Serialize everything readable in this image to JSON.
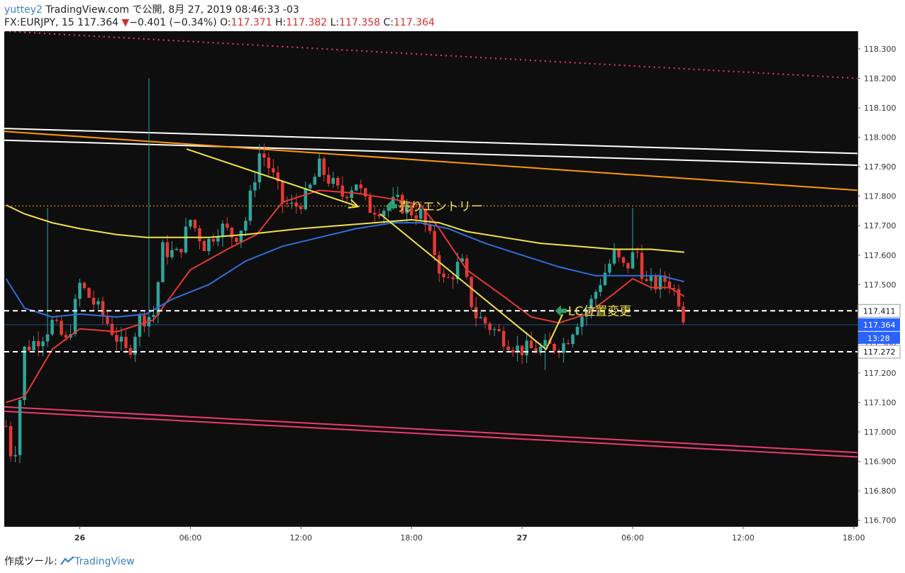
{
  "header": {
    "user": "yuttey2",
    "published": "TradingView.com で公開, 8月 27, 2019 08:46:33 -03",
    "symbol": "FX:EURJPY, 15",
    "last": "117.364",
    "change_arrow": "▼",
    "change": "−0.401 (−0.34%)",
    "o_label": "O:",
    "o": "117.371",
    "h_label": "H:",
    "h": "117.382",
    "l_label": "L:",
    "l": "117.358",
    "c_label": "C:",
    "c": "117.364"
  },
  "footer": {
    "label": "作成ツール:",
    "brand": "TradingView",
    "logo_icon": "tradingview-logo-icon"
  },
  "colors": {
    "background": "#0e0e0e",
    "up": "#2ea59a",
    "down": "#e53935",
    "ema_red": "#e53935",
    "ema_blue": "#2f6fdb",
    "ema_yellow": "#f2e24a",
    "trend_orange": "#ff9800",
    "trend_white": "#ffffff",
    "trend_pink": "#ec3b6e",
    "annotation_yellow": "#f2e24a",
    "annotation_green": "#2e9e6a"
  },
  "chart_data": {
    "type": "candlestick",
    "symbol": "FX:EURJPY",
    "timeframe": "15",
    "ylim": [
      116.68,
      118.36
    ],
    "y_ticks": [
      "116.700",
      "116.800",
      "116.900",
      "117.000",
      "117.100",
      "117.200",
      "117.300",
      "117.400",
      "117.500",
      "117.600",
      "117.700",
      "117.800",
      "117.900",
      "118.000",
      "118.100",
      "118.200",
      "118.300"
    ],
    "x_ticks": [
      {
        "label": "26",
        "bold": true,
        "hour": 6
      },
      {
        "label": "06:00",
        "bold": false,
        "hour": 12
      },
      {
        "label": "12:00",
        "bold": false,
        "hour": 18
      },
      {
        "label": "18:00",
        "bold": false,
        "hour": 24
      },
      {
        "label": "27",
        "bold": true,
        "hour": 30
      },
      {
        "label": "06:00",
        "bold": false,
        "hour": 36
      },
      {
        "label": "12:00",
        "bold": false,
        "hour": 42
      },
      {
        "label": "18:00",
        "bold": false,
        "hour": 48
      }
    ],
    "x_range_hours": [
      1.9,
      48.2
    ],
    "key_points": [
      [
        2.0,
        117.02
      ],
      [
        2.4,
        116.88
      ],
      [
        3.0,
        117.28
      ],
      [
        4.0,
        117.33
      ],
      [
        4.5,
        117.37
      ],
      [
        5.3,
        117.3
      ],
      [
        6.0,
        117.5
      ],
      [
        7.2,
        117.4
      ],
      [
        8.0,
        117.32
      ],
      [
        8.6,
        117.26
      ],
      [
        9.2,
        117.38
      ],
      [
        10.0,
        117.4
      ],
      [
        10.5,
        117.62
      ],
      [
        11.3,
        117.6
      ],
      [
        12.0,
        117.72
      ],
      [
        12.8,
        117.63
      ],
      [
        13.6,
        117.7
      ],
      [
        14.4,
        117.66
      ],
      [
        15.0,
        117.72
      ],
      [
        15.8,
        117.96
      ],
      [
        16.4,
        117.88
      ],
      [
        17.0,
        117.78
      ],
      [
        17.6,
        117.76
      ],
      [
        18.3,
        117.8
      ],
      [
        19.0,
        117.9
      ],
      [
        19.6,
        117.85
      ],
      [
        20.2,
        117.8
      ],
      [
        21.0,
        117.85
      ],
      [
        21.6,
        117.76
      ],
      [
        22.5,
        117.76
      ],
      [
        23.2,
        117.78
      ],
      [
        23.9,
        117.75
      ],
      [
        24.5,
        117.74
      ],
      [
        25.2,
        117.62
      ],
      [
        25.8,
        117.5
      ],
      [
        26.7,
        117.58
      ],
      [
        27.4,
        117.4
      ],
      [
        28.2,
        117.36
      ],
      [
        29.0,
        117.32
      ],
      [
        29.8,
        117.28
      ],
      [
        30.8,
        117.28
      ],
      [
        31.7,
        117.29
      ],
      [
        32.3,
        117.3
      ],
      [
        33.0,
        117.38
      ],
      [
        33.6,
        117.42
      ],
      [
        34.3,
        117.52
      ],
      [
        35.0,
        117.6
      ],
      [
        35.6,
        117.55
      ],
      [
        36.2,
        117.62
      ],
      [
        36.7,
        117.5
      ],
      [
        37.3,
        117.5
      ],
      [
        37.9,
        117.52
      ],
      [
        38.5,
        117.45
      ],
      [
        38.9,
        117.364
      ]
    ],
    "spike_highs": [
      [
        4.2,
        117.76
      ],
      [
        9.7,
        118.2
      ],
      [
        35.9,
        117.76
      ],
      [
        31.3,
        117.21
      ]
    ],
    "series": [
      {
        "kind": "ema",
        "points": [
          [
            2.0,
            117.1
          ],
          [
            3.0,
            117.12
          ],
          [
            4.5,
            117.28
          ],
          [
            6.0,
            117.35
          ],
          [
            8.0,
            117.34
          ],
          [
            10.0,
            117.38
          ],
          [
            12.0,
            117.55
          ],
          [
            14.0,
            117.62
          ],
          [
            15.6,
            117.67
          ],
          [
            17.0,
            117.78
          ],
          [
            19.0,
            117.82
          ],
          [
            21.0,
            117.81
          ],
          [
            23.0,
            117.79
          ],
          [
            24.5,
            117.77
          ],
          [
            25.5,
            117.69
          ],
          [
            27.0,
            117.55
          ],
          [
            29.0,
            117.46
          ],
          [
            30.5,
            117.39
          ],
          [
            32.0,
            117.37
          ],
          [
            33.5,
            117.4
          ],
          [
            35.0,
            117.47
          ],
          [
            36.0,
            117.52
          ],
          [
            37.0,
            117.49
          ],
          [
            38.0,
            117.49
          ],
          [
            38.8,
            117.46
          ]
        ]
      },
      {
        "kind": "ema",
        "points": [
          [
            2.0,
            117.52
          ],
          [
            3.0,
            117.42
          ],
          [
            4.5,
            117.39
          ],
          [
            6.0,
            117.4
          ],
          [
            8.0,
            117.39
          ],
          [
            9.6,
            117.4
          ],
          [
            11.0,
            117.45
          ],
          [
            13.0,
            117.5
          ],
          [
            15.0,
            117.58
          ],
          [
            17.0,
            117.63
          ],
          [
            19.0,
            117.66
          ],
          [
            21.0,
            117.69
          ],
          [
            23.0,
            117.71
          ],
          [
            24.5,
            117.71
          ],
          [
            26.0,
            117.69
          ],
          [
            28.0,
            117.64
          ],
          [
            30.0,
            117.6
          ],
          [
            32.0,
            117.56
          ],
          [
            34.0,
            117.53
          ],
          [
            36.0,
            117.53
          ],
          [
            37.5,
            117.53
          ],
          [
            38.8,
            117.51
          ]
        ]
      },
      {
        "kind": "ema",
        "points": [
          [
            2.0,
            117.77
          ],
          [
            3.0,
            117.74
          ],
          [
            4.5,
            117.71
          ],
          [
            6.0,
            117.69
          ],
          [
            8.0,
            117.67
          ],
          [
            9.6,
            117.66
          ],
          [
            11.0,
            117.66
          ],
          [
            13.0,
            117.66
          ],
          [
            15.0,
            117.67
          ],
          [
            16.5,
            117.68
          ],
          [
            18.0,
            117.69
          ],
          [
            20.0,
            117.7
          ],
          [
            22.0,
            117.71
          ],
          [
            24.0,
            117.72
          ],
          [
            25.5,
            117.71
          ],
          [
            27.0,
            117.68
          ],
          [
            29.0,
            117.66
          ],
          [
            31.0,
            117.64
          ],
          [
            33.0,
            117.63
          ],
          [
            35.0,
            117.62
          ],
          [
            37.0,
            117.62
          ],
          [
            38.8,
            117.61
          ]
        ]
      }
    ],
    "trendlines": [
      {
        "color_key": "trend_white",
        "style": "solid",
        "from": [
          1.9,
          118.03
        ],
        "to": [
          48.2,
          117.945
        ]
      },
      {
        "color_key": "trend_white",
        "style": "solid",
        "from": [
          1.9,
          117.99
        ],
        "to": [
          48.2,
          117.905
        ]
      },
      {
        "color_key": "trend_orange",
        "style": "solid",
        "from": [
          1.9,
          118.02
        ],
        "to": [
          48.2,
          117.82
        ]
      },
      {
        "color_key": "trend_pink",
        "style": "dotted",
        "from": [
          1.9,
          118.36
        ],
        "to": [
          48.2,
          118.2
        ]
      },
      {
        "color_key": "trend_pink",
        "style": "solid",
        "from": [
          1.9,
          117.085
        ],
        "to": [
          48.2,
          116.93
        ]
      },
      {
        "color_key": "trend_pink",
        "style": "solid",
        "from": [
          1.9,
          117.07
        ],
        "to": [
          48.2,
          116.915
        ]
      }
    ],
    "horizontal_levels": [
      {
        "price": 117.411,
        "label": "117.411",
        "style": "dashed",
        "color": "#ffffff",
        "label_bg": "#ffffff",
        "label_fg": "#111111"
      },
      {
        "price": 117.272,
        "label": "117.272",
        "style": "dashed",
        "color": "#ffffff",
        "label_bg": "#ffffff",
        "label_fg": "#111111"
      },
      {
        "price": 117.767,
        "label": "",
        "style": "dotted",
        "color": "#ff9800"
      },
      {
        "price": 117.364,
        "label": "117.364",
        "style": "thin",
        "color": "#3b82c4",
        "label_bg": "#2962ff",
        "label_fg": "#ffffff",
        "sub_label": "13:28"
      }
    ],
    "drawings": [
      {
        "color_key": "annotation_yellow",
        "points": [
          [
            11.8,
            117.96
          ],
          [
            21.1,
            117.765
          ]
        ],
        "arrow": true
      },
      {
        "color_key": "annotation_yellow",
        "points": [
          [
            22.3,
            117.74
          ],
          [
            31.3,
            117.28
          ],
          [
            32.2,
            117.4
          ]
        ]
      }
    ],
    "annotations": [
      {
        "text": "売りエントリー",
        "at": [
          22.6,
          117.766
        ]
      },
      {
        "text": "LC位置変更",
        "at": [
          31.8,
          117.411
        ]
      }
    ]
  }
}
